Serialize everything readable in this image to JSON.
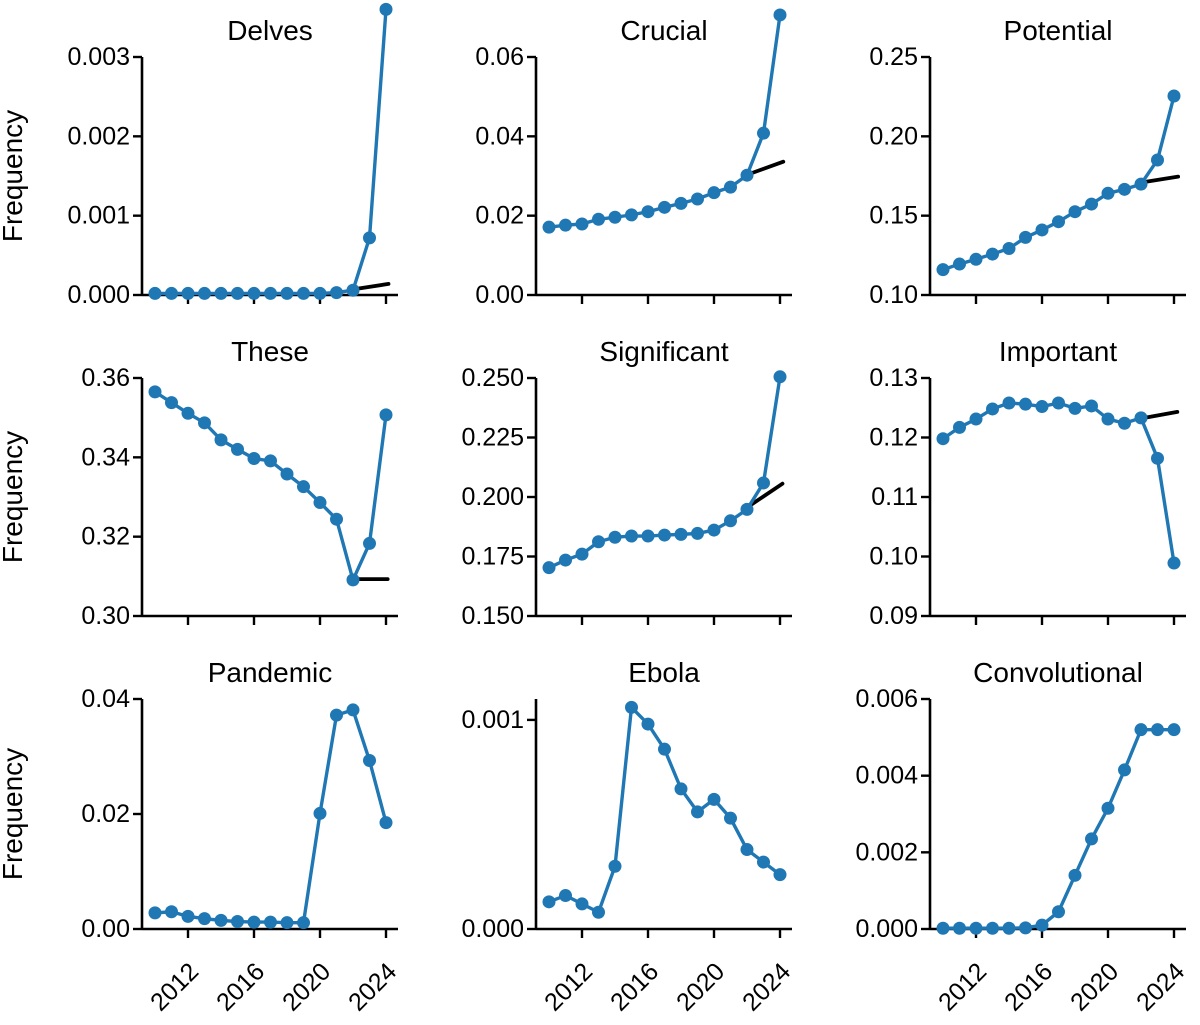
{
  "figure": {
    "background": "#ffffff",
    "ylabel": "Frequency"
  },
  "colors": {
    "series": "#1f77b4",
    "trend": "#000000",
    "axis": "#000000",
    "text": "#000000"
  },
  "x_years": [
    2010,
    2011,
    2012,
    2013,
    2014,
    2015,
    2016,
    2017,
    2018,
    2019,
    2020,
    2021,
    2022,
    2023,
    2024
  ],
  "x_ticks": [
    {
      "value": 2012,
      "label": "2012"
    },
    {
      "value": 2016,
      "label": "2016"
    },
    {
      "value": 2020,
      "label": "2020"
    },
    {
      "value": 2024,
      "label": "2024"
    }
  ],
  "chart_data": [
    {
      "type": "line",
      "title": "Delves",
      "row": 0,
      "col": 0,
      "ylabel": "Frequency",
      "xlabel": "",
      "grid": false,
      "legend": false,
      "ylim": [
        0,
        0.003
      ],
      "yticks": [
        {
          "value": 0.0,
          "label": "0.000"
        },
        {
          "value": 0.001,
          "label": "0.001"
        },
        {
          "value": 0.002,
          "label": "0.002"
        },
        {
          "value": 0.003,
          "label": "0.003"
        }
      ],
      "show_x_labels": false,
      "values": [
        2e-05,
        2e-05,
        2e-05,
        2e-05,
        2e-05,
        2e-05,
        2e-05,
        2e-05,
        2e-05,
        2e-05,
        2e-05,
        3e-05,
        6e-05,
        0.00072,
        0.0036
      ],
      "trend": {
        "x": [
          2022.3,
          2024.15
        ],
        "values": [
          8e-05,
          0.00014
        ]
      }
    },
    {
      "type": "line",
      "title": "Crucial",
      "row": 0,
      "col": 1,
      "ylabel": "",
      "xlabel": "",
      "grid": false,
      "legend": false,
      "ylim": [
        0,
        0.06
      ],
      "yticks": [
        {
          "value": 0.0,
          "label": "0.00"
        },
        {
          "value": 0.02,
          "label": "0.02"
        },
        {
          "value": 0.04,
          "label": "0.04"
        },
        {
          "value": 0.06,
          "label": "0.06"
        }
      ],
      "show_x_labels": false,
      "values": [
        0.0171,
        0.0176,
        0.0179,
        0.0191,
        0.0196,
        0.0202,
        0.021,
        0.0221,
        0.0231,
        0.0242,
        0.0258,
        0.0272,
        0.0302,
        0.0408,
        0.0706
      ],
      "trend": {
        "x": [
          2022.2,
          2024.2
        ],
        "values": [
          0.0306,
          0.0336
        ]
      }
    },
    {
      "type": "line",
      "title": "Potential",
      "row": 0,
      "col": 2,
      "ylabel": "",
      "xlabel": "",
      "grid": false,
      "legend": false,
      "ylim": [
        0.1,
        0.25
      ],
      "yticks": [
        {
          "value": 0.1,
          "label": "0.10"
        },
        {
          "value": 0.15,
          "label": "0.15"
        },
        {
          "value": 0.2,
          "label": "0.20"
        },
        {
          "value": 0.25,
          "label": "0.25"
        }
      ],
      "show_x_labels": false,
      "values": [
        0.116,
        0.1195,
        0.1225,
        0.1258,
        0.1293,
        0.1363,
        0.141,
        0.1462,
        0.1525,
        0.1573,
        0.1641,
        0.1666,
        0.1699,
        0.1851,
        0.2254
      ],
      "trend": {
        "x": [
          2022.3,
          2024.25
        ],
        "values": [
          0.1714,
          0.1746
        ]
      }
    },
    {
      "type": "line",
      "title": "These",
      "row": 1,
      "col": 0,
      "ylabel": "Frequency",
      "xlabel": "",
      "grid": false,
      "legend": false,
      "ylim": [
        0.3,
        0.36
      ],
      "yticks": [
        {
          "value": 0.3,
          "label": "0.30"
        },
        {
          "value": 0.32,
          "label": "0.32"
        },
        {
          "value": 0.34,
          "label": "0.34"
        },
        {
          "value": 0.36,
          "label": "0.36"
        }
      ],
      "show_x_labels": false,
      "values": [
        0.3565,
        0.3538,
        0.3511,
        0.3487,
        0.3444,
        0.342,
        0.3397,
        0.3391,
        0.3358,
        0.3326,
        0.3286,
        0.3244,
        0.3091,
        0.3183,
        0.3507
      ],
      "trend": {
        "x": [
          2022.35,
          2024.1
        ],
        "values": [
          0.3093,
          0.3093
        ]
      }
    },
    {
      "type": "line",
      "title": "Significant",
      "row": 1,
      "col": 1,
      "ylabel": "",
      "xlabel": "",
      "grid": false,
      "legend": false,
      "ylim": [
        0.15,
        0.25
      ],
      "yticks": [
        {
          "value": 0.15,
          "label": "0.150"
        },
        {
          "value": 0.175,
          "label": "0.175"
        },
        {
          "value": 0.2,
          "label": "0.200"
        },
        {
          "value": 0.225,
          "label": "0.225"
        },
        {
          "value": 0.25,
          "label": "0.250"
        }
      ],
      "show_x_labels": false,
      "values": [
        0.1703,
        0.1735,
        0.176,
        0.1812,
        0.1831,
        0.1836,
        0.1836,
        0.184,
        0.1843,
        0.1847,
        0.1861,
        0.19,
        0.1948,
        0.2059,
        0.2505
      ],
      "trend": {
        "x": [
          2022.3,
          2024.15
        ],
        "values": [
          0.197,
          0.2056
        ]
      }
    },
    {
      "type": "line",
      "title": "Important",
      "row": 1,
      "col": 2,
      "ylabel": "",
      "xlabel": "",
      "grid": false,
      "legend": false,
      "ylim": [
        0.09,
        0.13
      ],
      "yticks": [
        {
          "value": 0.09,
          "label": "0.09"
        },
        {
          "value": 0.1,
          "label": "0.10"
        },
        {
          "value": 0.11,
          "label": "0.11"
        },
        {
          "value": 0.12,
          "label": "0.12"
        },
        {
          "value": 0.13,
          "label": "0.13"
        }
      ],
      "show_x_labels": false,
      "values": [
        0.1198,
        0.1217,
        0.1231,
        0.1248,
        0.1258,
        0.1256,
        0.1252,
        0.1258,
        0.1249,
        0.1253,
        0.1231,
        0.1224,
        0.1233,
        0.1165,
        0.0989
      ],
      "trend": {
        "x": [
          2022.2,
          2024.2
        ],
        "values": [
          0.1233,
          0.1243
        ]
      }
    },
    {
      "type": "line",
      "title": "Pandemic",
      "row": 2,
      "col": 0,
      "ylabel": "Frequency",
      "xlabel": "",
      "grid": false,
      "legend": false,
      "ylim": [
        0,
        0.04
      ],
      "yticks": [
        {
          "value": 0.0,
          "label": "0.00"
        },
        {
          "value": 0.02,
          "label": "0.02"
        },
        {
          "value": 0.04,
          "label": "0.04"
        }
      ],
      "show_x_labels": true,
      "values": [
        0.0028,
        0.003,
        0.0022,
        0.0018,
        0.0015,
        0.0013,
        0.0012,
        0.0012,
        0.0011,
        0.0011,
        0.0201,
        0.0372,
        0.0381,
        0.0293,
        0.0185
      ],
      "trend": null
    },
    {
      "type": "line",
      "title": "Ebola",
      "row": 2,
      "col": 1,
      "ylabel": "",
      "xlabel": "",
      "grid": false,
      "legend": false,
      "ylim": [
        0,
        0.0011
      ],
      "yticks": [
        {
          "value": 0.0,
          "label": "0.000"
        },
        {
          "value": 0.001,
          "label": "0.001"
        }
      ],
      "show_x_labels": true,
      "values": [
        0.00013,
        0.00016,
        0.00012,
        8e-05,
        0.0003,
        0.00106,
        0.00098,
        0.00086,
        0.00067,
        0.00056,
        0.00062,
        0.00053,
        0.00038,
        0.00032,
        0.00026
      ],
      "trend": null
    },
    {
      "type": "line",
      "title": "Convolutional",
      "row": 2,
      "col": 2,
      "ylabel": "",
      "xlabel": "",
      "grid": false,
      "legend": false,
      "ylim": [
        0,
        0.006
      ],
      "yticks": [
        {
          "value": 0.0,
          "label": "0.000"
        },
        {
          "value": 0.002,
          "label": "0.002"
        },
        {
          "value": 0.004,
          "label": "0.004"
        },
        {
          "value": 0.006,
          "label": "0.006"
        }
      ],
      "show_x_labels": true,
      "values": [
        2e-05,
        2e-05,
        2e-05,
        2e-05,
        2e-05,
        3e-05,
        0.0001,
        0.00045,
        0.0014,
        0.00235,
        0.00315,
        0.00415,
        0.0052,
        0.0052,
        0.0052
      ],
      "trend": null
    }
  ]
}
